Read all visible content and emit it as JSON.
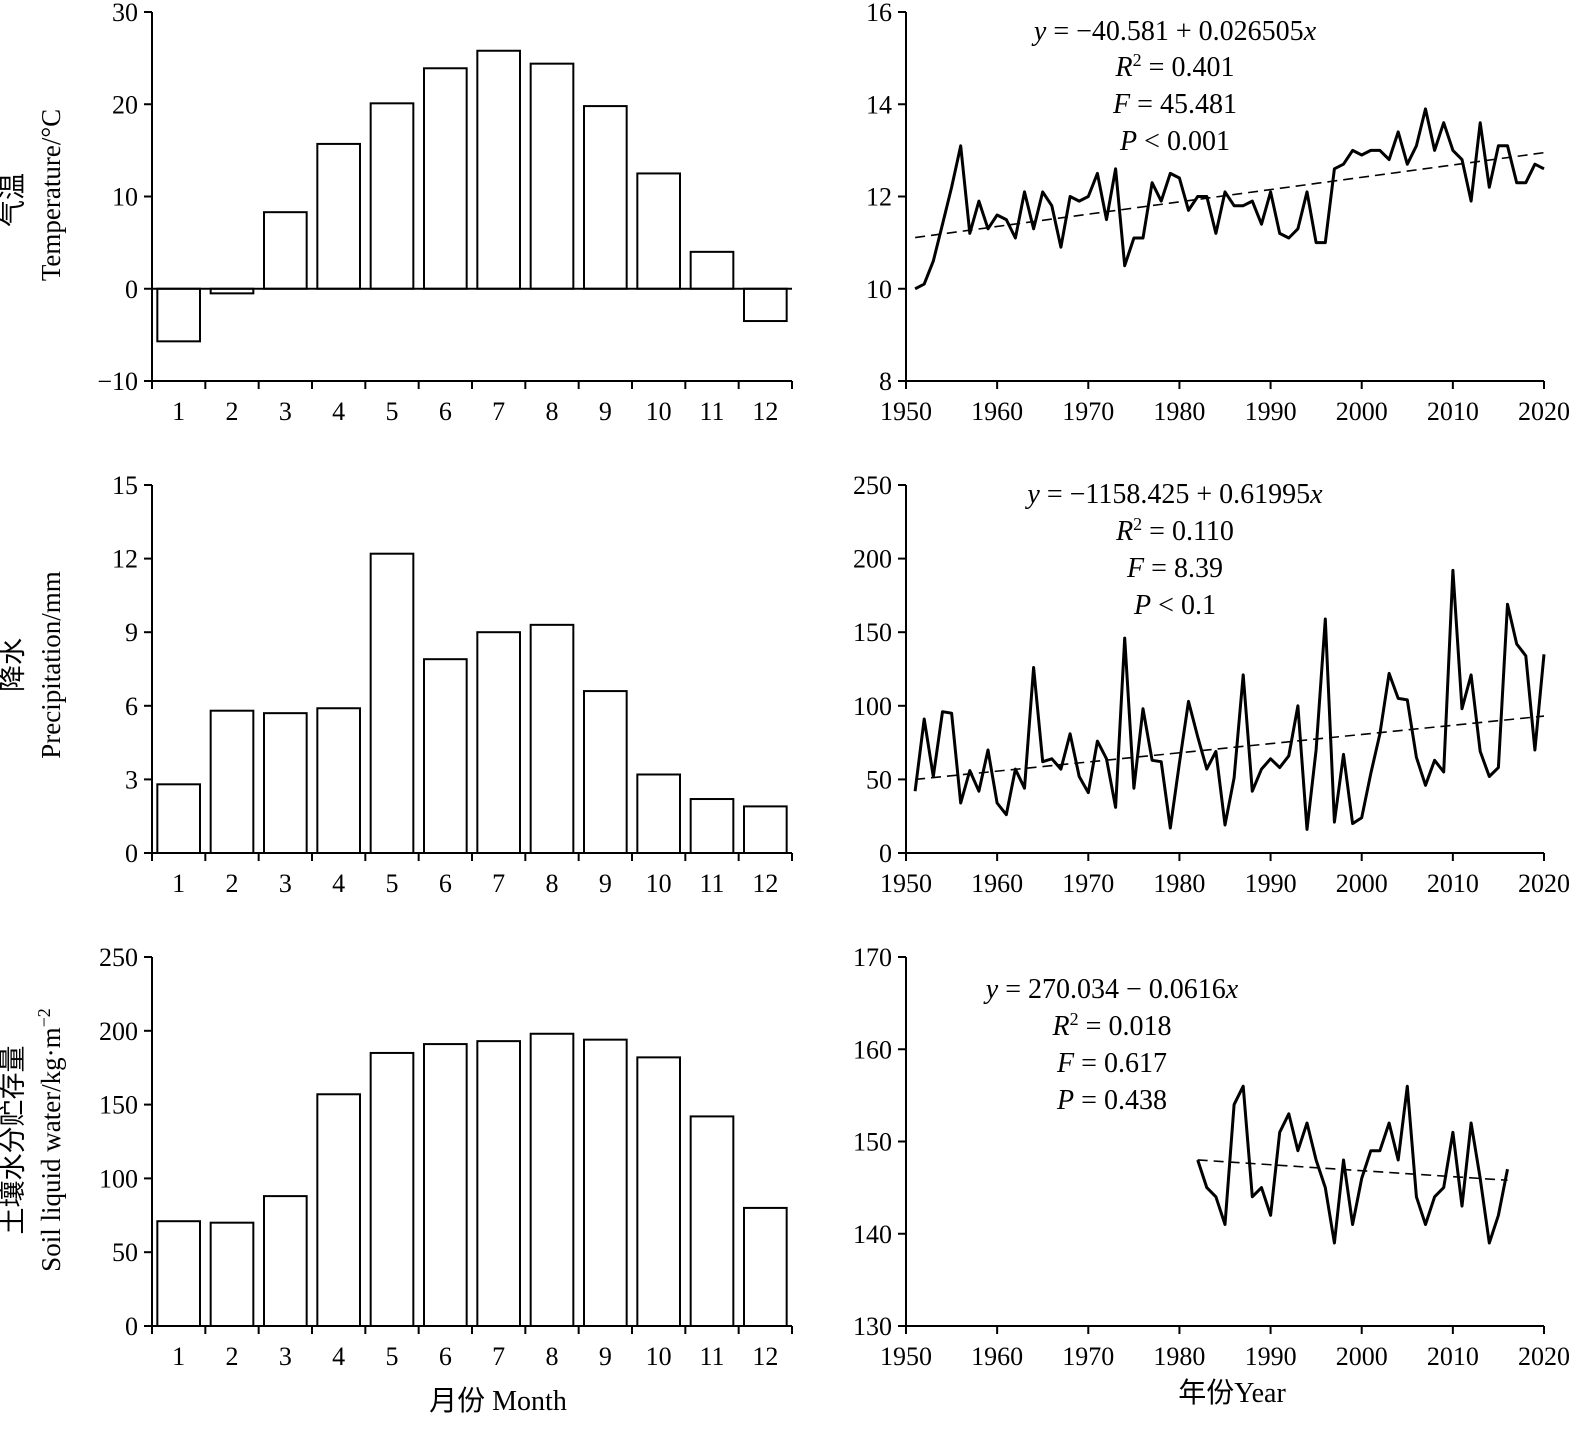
{
  "figure": {
    "x_label_left": "月份 Month",
    "x_label_right": "年份Year"
  },
  "chart_data": [
    {
      "type": "bar",
      "ylabel_cn": "气温",
      "ylabel_en": "Temperature/°C",
      "categories": [
        "1",
        "2",
        "3",
        "4",
        "5",
        "6",
        "7",
        "8",
        "9",
        "10",
        "11",
        "12"
      ],
      "values": [
        -5.7,
        -0.5,
        8.3,
        15.7,
        20.1,
        23.9,
        25.8,
        24.4,
        19.8,
        12.5,
        4.0,
        -3.5
      ],
      "ylim": [
        -10,
        30
      ],
      "yticks": [
        -10,
        0,
        10,
        20,
        30
      ],
      "ytick_labels": [
        "−10",
        "0",
        "10",
        "20",
        "30"
      ]
    },
    {
      "type": "line",
      "xlim": [
        1950,
        2020
      ],
      "xticks": [
        1950,
        1960,
        1970,
        1980,
        1990,
        2000,
        2010,
        2020
      ],
      "ylim": [
        8,
        16
      ],
      "yticks": [
        8,
        10,
        12,
        14,
        16
      ],
      "ytick_labels": [
        "8",
        "10",
        "12",
        "14",
        "16"
      ],
      "equation": {
        "y_eq": "y = −40.581 + 0.026505x",
        "r2": "R2 = 0.401",
        "f": "F = 45.481",
        "p": "P < 0.001"
      },
      "trend": {
        "x": [
          1951,
          2020
        ],
        "y": [
          11.11,
          12.95
        ]
      },
      "x": [
        1951,
        1952,
        1953,
        1954,
        1955,
        1956,
        1957,
        1958,
        1959,
        1960,
        1961,
        1962,
        1963,
        1964,
        1965,
        1966,
        1967,
        1968,
        1969,
        1970,
        1971,
        1972,
        1973,
        1974,
        1975,
        1976,
        1977,
        1978,
        1979,
        1980,
        1981,
        1982,
        1983,
        1984,
        1985,
        1986,
        1987,
        1988,
        1989,
        1990,
        1991,
        1992,
        1993,
        1994,
        1995,
        1996,
        1997,
        1998,
        1999,
        2000,
        2001,
        2002,
        2003,
        2004,
        2005,
        2006,
        2007,
        2008,
        2009,
        2010,
        2011,
        2012,
        2013,
        2014,
        2015,
        2016,
        2017,
        2018,
        2019,
        2020
      ],
      "y": [
        10.0,
        10.1,
        10.6,
        11.4,
        12.2,
        13.1,
        11.2,
        11.9,
        11.3,
        11.6,
        11.5,
        11.1,
        12.1,
        11.3,
        12.1,
        11.8,
        10.9,
        12.0,
        11.9,
        12.0,
        12.5,
        11.5,
        12.6,
        10.5,
        11.1,
        11.1,
        12.3,
        11.9,
        12.5,
        12.4,
        11.7,
        12.0,
        12.0,
        11.2,
        12.1,
        11.8,
        11.8,
        11.9,
        11.4,
        12.1,
        11.2,
        11.1,
        11.3,
        12.1,
        11.0,
        11.0,
        12.6,
        12.7,
        13.0,
        12.9,
        13.0,
        13.0,
        12.8,
        13.4,
        12.7,
        13.1,
        13.9,
        13.0,
        13.6,
        13.0,
        12.8,
        11.9,
        13.6,
        12.2,
        13.1,
        13.1,
        12.3,
        12.3,
        12.7,
        12.6
      ]
    },
    {
      "type": "bar",
      "ylabel_cn": "降水",
      "ylabel_en": "Precipitation/mm",
      "categories": [
        "1",
        "2",
        "3",
        "4",
        "5",
        "6",
        "7",
        "8",
        "9",
        "10",
        "11",
        "12"
      ],
      "values": [
        2.8,
        5.8,
        5.7,
        5.9,
        12.2,
        7.9,
        9.0,
        9.3,
        6.6,
        3.2,
        2.2,
        1.9
      ],
      "ylim": [
        0,
        15
      ],
      "yticks": [
        0,
        3,
        6,
        9,
        12,
        15
      ],
      "ytick_labels": [
        "0",
        "3",
        "6",
        "9",
        "12",
        "15"
      ]
    },
    {
      "type": "line",
      "xlim": [
        1950,
        2020
      ],
      "xticks": [
        1950,
        1960,
        1970,
        1980,
        1990,
        2000,
        2010,
        2020
      ],
      "ylim": [
        0,
        250
      ],
      "yticks": [
        0,
        50,
        100,
        150,
        200,
        250
      ],
      "ytick_labels": [
        "0",
        "50",
        "100",
        "150",
        "200",
        "250"
      ],
      "equation": {
        "y_eq": "y = −1158.425 + 0.61995x",
        "r2": "R2 = 0.110",
        "f": "F = 8.39",
        "p": "P < 0.1"
      },
      "trend": {
        "x": [
          1951,
          2020
        ],
        "y": [
          50,
          93
        ]
      },
      "x": [
        1951,
        1952,
        1953,
        1954,
        1955,
        1956,
        1957,
        1958,
        1959,
        1960,
        1961,
        1962,
        1963,
        1964,
        1965,
        1966,
        1967,
        1968,
        1969,
        1970,
        1971,
        1972,
        1973,
        1974,
        1975,
        1976,
        1977,
        1978,
        1979,
        1980,
        1981,
        1982,
        1983,
        1984,
        1985,
        1986,
        1987,
        1988,
        1989,
        1990,
        1991,
        1992,
        1993,
        1994,
        1995,
        1996,
        1997,
        1998,
        1999,
        2000,
        2001,
        2002,
        2003,
        2004,
        2005,
        2006,
        2007,
        2008,
        2009,
        2010,
        2011,
        2012,
        2013,
        2014,
        2015,
        2016,
        2017,
        2018,
        2019,
        2020
      ],
      "y": [
        42,
        91,
        52,
        96,
        95,
        34,
        56,
        42,
        70,
        34,
        26,
        57,
        44,
        126,
        62,
        64,
        57,
        81,
        52,
        41,
        76,
        64,
        31,
        146,
        44,
        98,
        63,
        62,
        17,
        61,
        103,
        79,
        57,
        69,
        19,
        51,
        121,
        42,
        57,
        64,
        58,
        66,
        100,
        16,
        70,
        159,
        21,
        67,
        20,
        24,
        54,
        81,
        122,
        105,
        104,
        65,
        46,
        63,
        55,
        192,
        98,
        121,
        69,
        52,
        58,
        169,
        142,
        134,
        70,
        135
      ]
    },
    {
      "type": "bar",
      "ylabel_cn": "土壤水分贮存量",
      "ylabel_en": "Soil liquid water/kg·m−2",
      "categories": [
        "1",
        "2",
        "3",
        "4",
        "5",
        "6",
        "7",
        "8",
        "9",
        "10",
        "11",
        "12"
      ],
      "values": [
        71,
        70,
        88,
        157,
        185,
        191,
        193,
        198,
        194,
        182,
        142,
        80
      ],
      "ylim": [
        0,
        250
      ],
      "yticks": [
        0,
        50,
        100,
        150,
        200,
        250
      ],
      "ytick_labels": [
        "0",
        "50",
        "100",
        "150",
        "200",
        "250"
      ]
    },
    {
      "type": "line",
      "xlim": [
        1950,
        2020
      ],
      "xticks": [
        1950,
        1960,
        1970,
        1980,
        1990,
        2000,
        2010,
        2020
      ],
      "ylim": [
        130,
        170
      ],
      "yticks": [
        130,
        140,
        150,
        160,
        170
      ],
      "ytick_labels": [
        "130",
        "140",
        "150",
        "160",
        "170"
      ],
      "equation": {
        "y_eq": "y = 270.034 − 0.0616x",
        "r2": "R2 = 0.018",
        "f": "F = 0.617",
        "p": "P = 0.438"
      },
      "trend": {
        "x": [
          1982,
          2016
        ],
        "y": [
          148.0,
          145.8
        ]
      },
      "x": [
        1982,
        1983,
        1984,
        1985,
        1986,
        1987,
        1988,
        1989,
        1990,
        1991,
        1992,
        1993,
        1994,
        1995,
        1996,
        1997,
        1998,
        1999,
        2000,
        2001,
        2002,
        2003,
        2004,
        2005,
        2006,
        2007,
        2008,
        2009,
        2010,
        2011,
        2012,
        2013,
        2014,
        2015,
        2016
      ],
      "y": [
        148,
        145,
        144,
        141,
        154,
        156,
        144,
        145,
        142,
        151,
        153,
        149,
        152,
        148,
        145,
        139,
        148,
        141,
        146,
        149,
        149,
        152,
        148,
        156,
        144,
        141,
        144,
        145,
        151,
        143,
        152,
        146,
        139,
        142,
        147
      ]
    }
  ]
}
